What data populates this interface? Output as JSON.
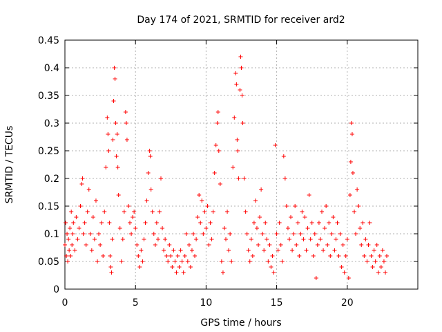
{
  "chart_data": {
    "type": "scatter",
    "title": "Day 174 of 2021, SRMTID for receiver ard2",
    "xlabel": "GPS time / hours",
    "ylabel": "SRMTID / TECUs",
    "xlim": [
      0,
      25
    ],
    "ylim": [
      0,
      0.45
    ],
    "xticks": [
      0,
      5,
      10,
      15,
      20
    ],
    "xtick_labels": [
      "0",
      "5",
      "10",
      "15",
      "20"
    ],
    "yticks": [
      0,
      0.05,
      0.1,
      0.15,
      0.2,
      0.25,
      0.3,
      0.35,
      0.4,
      0.45
    ],
    "ytick_labels": [
      "0",
      "0.05",
      "0.1",
      "0.15",
      "0.2",
      "0.25",
      "0.3",
      "0.35",
      "0.4",
      "0.45"
    ],
    "grid": true,
    "marker": "+",
    "marker_color": "#ff0000",
    "series": [
      {
        "name": "SRMTID",
        "points": [
          [
            0.0,
            0.08
          ],
          [
            0.05,
            0.12
          ],
          [
            0.1,
            0.06
          ],
          [
            0.15,
            0.1
          ],
          [
            0.2,
            0.05
          ],
          [
            0.25,
            0.09
          ],
          [
            0.3,
            0.07
          ],
          [
            0.35,
            0.11
          ],
          [
            0.4,
            0.06
          ],
          [
            0.45,
            0.14
          ],
          [
            0.5,
            0.08
          ],
          [
            0.55,
            0.1
          ],
          [
            0.6,
            0.12
          ],
          [
            0.7,
            0.07
          ],
          [
            0.8,
            0.13
          ],
          [
            0.9,
            0.09
          ],
          [
            1.0,
            0.11
          ],
          [
            1.1,
            0.15
          ],
          [
            1.2,
            0.19
          ],
          [
            1.25,
            0.2
          ],
          [
            1.3,
            0.1
          ],
          [
            1.4,
            0.12
          ],
          [
            1.5,
            0.08
          ],
          [
            1.6,
            0.14
          ],
          [
            1.7,
            0.18
          ],
          [
            1.8,
            0.1
          ],
          [
            1.9,
            0.07
          ],
          [
            2.0,
            0.13
          ],
          [
            2.1,
            0.09
          ],
          [
            2.2,
            0.16
          ],
          [
            2.3,
            0.05
          ],
          [
            2.4,
            0.1
          ],
          [
            2.5,
            0.08
          ],
          [
            2.6,
            0.12
          ],
          [
            2.7,
            0.06
          ],
          [
            2.8,
            0.14
          ],
          [
            2.9,
            0.22
          ],
          [
            3.0,
            0.31
          ],
          [
            3.05,
            0.28
          ],
          [
            3.1,
            0.25
          ],
          [
            3.15,
            0.12
          ],
          [
            3.2,
            0.06
          ],
          [
            3.25,
            0.04
          ],
          [
            3.3,
            0.03
          ],
          [
            3.35,
            0.09
          ],
          [
            3.4,
            0.27
          ],
          [
            3.45,
            0.34
          ],
          [
            3.5,
            0.4
          ],
          [
            3.55,
            0.38
          ],
          [
            3.6,
            0.3
          ],
          [
            3.65,
            0.24
          ],
          [
            3.7,
            0.28
          ],
          [
            3.75,
            0.22
          ],
          [
            3.8,
            0.17
          ],
          [
            3.9,
            0.11
          ],
          [
            4.0,
            0.05
          ],
          [
            4.1,
            0.09
          ],
          [
            4.2,
            0.14
          ],
          [
            4.3,
            0.32
          ],
          [
            4.35,
            0.3
          ],
          [
            4.4,
            0.27
          ],
          [
            4.5,
            0.15
          ],
          [
            4.6,
            0.12
          ],
          [
            4.7,
            0.1
          ],
          [
            4.8,
            0.13
          ],
          [
            4.9,
            0.14
          ],
          [
            5.0,
            0.11
          ],
          [
            5.1,
            0.08
          ],
          [
            5.2,
            0.06
          ],
          [
            5.3,
            0.04
          ],
          [
            5.4,
            0.07
          ],
          [
            5.5,
            0.05
          ],
          [
            5.6,
            0.09
          ],
          [
            5.7,
            0.12
          ],
          [
            5.8,
            0.16
          ],
          [
            5.9,
            0.21
          ],
          [
            6.0,
            0.25
          ],
          [
            6.05,
            0.24
          ],
          [
            6.1,
            0.18
          ],
          [
            6.2,
            0.14
          ],
          [
            6.3,
            0.1
          ],
          [
            6.4,
            0.08
          ],
          [
            6.5,
            0.12
          ],
          [
            6.6,
            0.09
          ],
          [
            6.7,
            0.14
          ],
          [
            6.8,
            0.2
          ],
          [
            6.9,
            0.11
          ],
          [
            7.0,
            0.07
          ],
          [
            7.1,
            0.09
          ],
          [
            7.2,
            0.06
          ],
          [
            7.3,
            0.05
          ],
          [
            7.4,
            0.08
          ],
          [
            7.5,
            0.06
          ],
          [
            7.6,
            0.04
          ],
          [
            7.7,
            0.07
          ],
          [
            7.8,
            0.05
          ],
          [
            7.9,
            0.03
          ],
          [
            8.0,
            0.06
          ],
          [
            8.1,
            0.04
          ],
          [
            8.2,
            0.07
          ],
          [
            8.3,
            0.05
          ],
          [
            8.4,
            0.03
          ],
          [
            8.5,
            0.06
          ],
          [
            8.6,
            0.1
          ],
          [
            8.7,
            0.05
          ],
          [
            8.8,
            0.08
          ],
          [
            8.9,
            0.04
          ],
          [
            9.0,
            0.07
          ],
          [
            9.1,
            0.1
          ],
          [
            9.2,
            0.06
          ],
          [
            9.3,
            0.09
          ],
          [
            9.4,
            0.13
          ],
          [
            9.5,
            0.17
          ],
          [
            9.6,
            0.12
          ],
          [
            9.7,
            0.16
          ],
          [
            9.8,
            0.1
          ],
          [
            9.9,
            0.14
          ],
          [
            10.0,
            0.11
          ],
          [
            10.1,
            0.15
          ],
          [
            10.2,
            0.08
          ],
          [
            10.3,
            0.12
          ],
          [
            10.4,
            0.09
          ],
          [
            10.5,
            0.14
          ],
          [
            10.6,
            0.21
          ],
          [
            10.7,
            0.26
          ],
          [
            10.8,
            0.3
          ],
          [
            10.85,
            0.32
          ],
          [
            10.9,
            0.25
          ],
          [
            11.0,
            0.19
          ],
          [
            11.1,
            0.05
          ],
          [
            11.2,
            0.03
          ],
          [
            11.3,
            0.11
          ],
          [
            11.4,
            0.09
          ],
          [
            11.5,
            0.14
          ],
          [
            11.6,
            0.07
          ],
          [
            11.7,
            0.1
          ],
          [
            11.8,
            0.05
          ],
          [
            11.9,
            0.22
          ],
          [
            12.0,
            0.31
          ],
          [
            12.1,
            0.39
          ],
          [
            12.15,
            0.37
          ],
          [
            12.2,
            0.27
          ],
          [
            12.25,
            0.25
          ],
          [
            12.3,
            0.2
          ],
          [
            12.4,
            0.36
          ],
          [
            12.45,
            0.42
          ],
          [
            12.5,
            0.4
          ],
          [
            12.55,
            0.35
          ],
          [
            12.6,
            0.3
          ],
          [
            12.7,
            0.2
          ],
          [
            12.8,
            0.14
          ],
          [
            12.9,
            0.1
          ],
          [
            13.0,
            0.07
          ],
          [
            13.1,
            0.05
          ],
          [
            13.2,
            0.09
          ],
          [
            13.3,
            0.06
          ],
          [
            13.4,
            0.12
          ],
          [
            13.5,
            0.16
          ],
          [
            13.6,
            0.11
          ],
          [
            13.7,
            0.08
          ],
          [
            13.8,
            0.13
          ],
          [
            13.9,
            0.18
          ],
          [
            14.0,
            0.1
          ],
          [
            14.1,
            0.07
          ],
          [
            14.2,
            0.12
          ],
          [
            14.3,
            0.09
          ],
          [
            14.4,
            0.05
          ],
          [
            14.5,
            0.08
          ],
          [
            14.6,
            0.04
          ],
          [
            14.7,
            0.06
          ],
          [
            14.8,
            0.03
          ],
          [
            14.9,
            0.26
          ],
          [
            15.0,
            0.1
          ],
          [
            15.1,
            0.07
          ],
          [
            15.2,
            0.12
          ],
          [
            15.3,
            0.08
          ],
          [
            15.4,
            0.05
          ],
          [
            15.5,
            0.24
          ],
          [
            15.6,
            0.2
          ],
          [
            15.7,
            0.15
          ],
          [
            15.8,
            0.11
          ],
          [
            15.9,
            0.09
          ],
          [
            16.0,
            0.13
          ],
          [
            16.1,
            0.07
          ],
          [
            16.2,
            0.1
          ],
          [
            16.3,
            0.15
          ],
          [
            16.4,
            0.08
          ],
          [
            16.5,
            0.12
          ],
          [
            16.6,
            0.06
          ],
          [
            16.7,
            0.1
          ],
          [
            16.8,
            0.14
          ],
          [
            16.9,
            0.09
          ],
          [
            17.0,
            0.13
          ],
          [
            17.1,
            0.07
          ],
          [
            17.2,
            0.11
          ],
          [
            17.3,
            0.17
          ],
          [
            17.4,
            0.09
          ],
          [
            17.5,
            0.12
          ],
          [
            17.6,
            0.06
          ],
          [
            17.7,
            0.1
          ],
          [
            17.8,
            0.02
          ],
          [
            17.9,
            0.08
          ],
          [
            18.0,
            0.12
          ],
          [
            18.1,
            0.09
          ],
          [
            18.2,
            0.14
          ],
          [
            18.3,
            0.07
          ],
          [
            18.4,
            0.11
          ],
          [
            18.5,
            0.15
          ],
          [
            18.6,
            0.08
          ],
          [
            18.7,
            0.12
          ],
          [
            18.8,
            0.06
          ],
          [
            18.9,
            0.1
          ],
          [
            19.0,
            0.13
          ],
          [
            19.1,
            0.07
          ],
          [
            19.2,
            0.09
          ],
          [
            19.3,
            0.12
          ],
          [
            19.4,
            0.06
          ],
          [
            19.5,
            0.1
          ],
          [
            19.6,
            0.04
          ],
          [
            19.7,
            0.08
          ],
          [
            19.8,
            0.03
          ],
          [
            19.9,
            0.06
          ],
          [
            20.0,
            0.09
          ],
          [
            20.1,
            0.02
          ],
          [
            20.2,
            0.17
          ],
          [
            20.25,
            0.23
          ],
          [
            20.3,
            0.3
          ],
          [
            20.35,
            0.28
          ],
          [
            20.4,
            0.21
          ],
          [
            20.5,
            0.14
          ],
          [
            20.6,
            0.1
          ],
          [
            20.7,
            0.18
          ],
          [
            20.8,
            0.15
          ],
          [
            20.9,
            0.11
          ],
          [
            21.0,
            0.08
          ],
          [
            21.1,
            0.12
          ],
          [
            21.2,
            0.06
          ],
          [
            21.3,
            0.09
          ],
          [
            21.4,
            0.05
          ],
          [
            21.5,
            0.08
          ],
          [
            21.6,
            0.12
          ],
          [
            21.7,
            0.06
          ],
          [
            21.8,
            0.04
          ],
          [
            21.9,
            0.07
          ],
          [
            22.0,
            0.05
          ],
          [
            22.1,
            0.08
          ],
          [
            22.2,
            0.03
          ],
          [
            22.3,
            0.06
          ],
          [
            22.4,
            0.04
          ],
          [
            22.5,
            0.07
          ],
          [
            22.6,
            0.05
          ],
          [
            22.7,
            0.03
          ],
          [
            22.8,
            0.06
          ]
        ]
      }
    ]
  }
}
